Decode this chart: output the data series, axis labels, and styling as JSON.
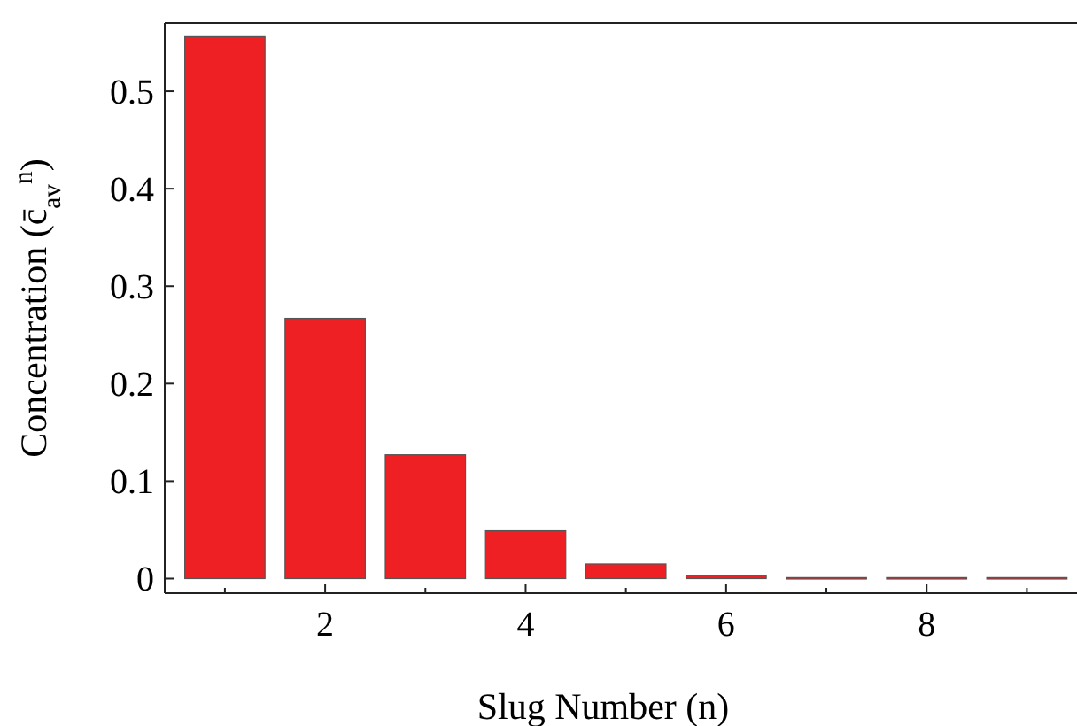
{
  "chart_data": {
    "type": "bar",
    "xlabel": "Slug Number (n)",
    "ylabel": "Concentration (c̄$_{av}$$^{n}$)",
    "x": [
      1,
      2,
      3,
      4,
      5,
      6,
      7,
      8,
      9
    ],
    "values": [
      0.556,
      0.267,
      0.127,
      0.049,
      0.015,
      0.003,
      0.001,
      0.001,
      0.001
    ],
    "color": "#ee2024",
    "xlim": [
      0.4,
      9.5
    ],
    "ylim": [
      -0.015,
      0.57
    ],
    "xticks": [
      {
        "value": 1,
        "label": null
      },
      2,
      {
        "value": 3,
        "label": null
      },
      4,
      {
        "value": 5,
        "label": null
      },
      6,
      {
        "value": 7,
        "label": null
      },
      8,
      {
        "value": 9,
        "label": null
      }
    ],
    "yticks": [
      0,
      0.1,
      0.2,
      0.3,
      0.4,
      0.5
    ],
    "grid": false
  }
}
